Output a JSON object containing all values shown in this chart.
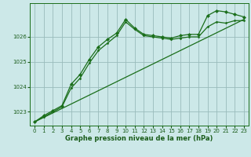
{
  "title": "Graphe pression niveau de la mer (hPa)",
  "background_color": "#cce8e8",
  "grid_color": "#99bbbb",
  "line_color": "#1a6e1a",
  "text_color": "#1a5c1a",
  "xlim": [
    -0.5,
    23.5
  ],
  "ylim": [
    1022.45,
    1027.35
  ],
  "yticks": [
    1023,
    1024,
    1025,
    1026
  ],
  "xticks": [
    0,
    1,
    2,
    3,
    4,
    5,
    6,
    7,
    8,
    9,
    10,
    11,
    12,
    13,
    14,
    15,
    16,
    17,
    18,
    19,
    20,
    21,
    22,
    23
  ],
  "series": [
    {
      "x": [
        0,
        1,
        2,
        3,
        4,
        5,
        6,
        7,
        8,
        9,
        10,
        11,
        12,
        13,
        14,
        15,
        16,
        17,
        18,
        19,
        20,
        21,
        22,
        23
      ],
      "y": [
        1022.6,
        1022.85,
        1023.05,
        1023.25,
        1024.1,
        1024.5,
        1025.1,
        1025.6,
        1025.9,
        1026.15,
        1026.7,
        1026.35,
        1026.1,
        1026.05,
        1026.0,
        1025.95,
        1026.05,
        1026.1,
        1026.1,
        1026.85,
        1027.05,
        1027.0,
        1026.9,
        1026.8
      ],
      "marker": "D",
      "markersize": 2.2,
      "linewidth": 0.9
    },
    {
      "x": [
        0,
        1,
        2,
        3,
        4,
        5,
        6,
        7,
        8,
        9,
        10,
        11,
        12,
        13,
        14,
        15,
        16,
        17,
        18,
        19,
        20,
        21,
        22,
        23
      ],
      "y": [
        1022.6,
        1022.8,
        1023.0,
        1023.2,
        1023.95,
        1024.35,
        1024.95,
        1025.45,
        1025.75,
        1026.05,
        1026.6,
        1026.3,
        1026.05,
        1026.0,
        1025.95,
        1025.9,
        1025.95,
        1026.0,
        1026.0,
        1026.4,
        1026.6,
        1026.55,
        1026.65,
        1026.65
      ],
      "marker": "D",
      "markersize": 1.5,
      "linewidth": 0.9
    },
    {
      "x": [
        0,
        23
      ],
      "y": [
        1022.6,
        1026.7
      ],
      "marker": null,
      "markersize": 0,
      "linewidth": 0.9
    }
  ]
}
